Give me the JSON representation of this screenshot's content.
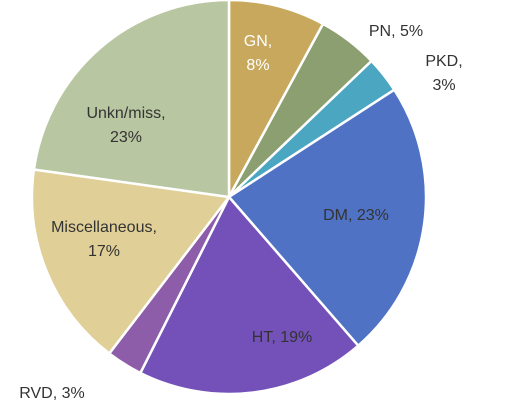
{
  "chart_data": {
    "type": "pie",
    "categories": [
      "GN",
      "PN",
      "PKD",
      "DM",
      "HT",
      "RVD",
      "Miscellaneous",
      "Unkn/miss"
    ],
    "values": [
      8,
      5,
      3,
      23,
      19,
      3,
      17,
      23
    ],
    "value_labels": [
      "GN,\n8%",
      "PN, 5%",
      "PKD, 3%",
      "DM, 23%",
      "HT, 19%",
      "RVD, 3%",
      "Miscellaneous,\n17%",
      "Unkn/miss,\n23%"
    ],
    "colors": [
      "#c8a85c",
      "#8c9f70",
      "#4ba6c2",
      "#4f72c4",
      "#7351b8",
      "#8e5daa",
      "#e0cf96",
      "#b8c6a2"
    ]
  }
}
